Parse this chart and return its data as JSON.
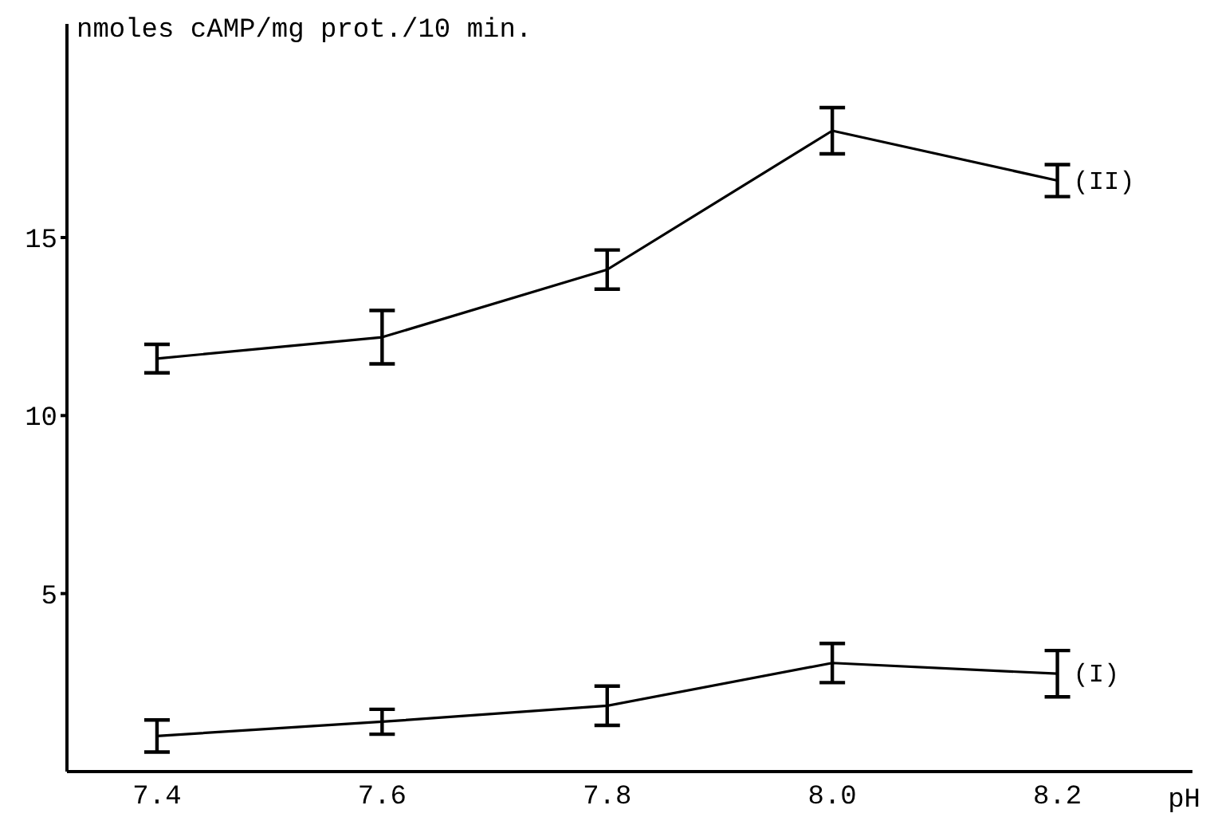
{
  "chart_data": {
    "type": "line",
    "ylabel": "nmoles cAMP/mg prot./10 min.",
    "xlabel": "pH",
    "x": [
      7.4,
      7.6,
      7.8,
      8.0,
      8.2
    ],
    "series": [
      {
        "name": "(II)",
        "color": "#000000",
        "values": [
          11.6,
          12.2,
          14.1,
          18.0,
          16.6
        ],
        "errors": [
          0.4,
          0.75,
          0.55,
          0.65,
          0.45
        ]
      },
      {
        "name": "(I)",
        "color": "#000000",
        "values": [
          1.0,
          1.4,
          1.85,
          3.05,
          2.75
        ],
        "errors": [
          0.45,
          0.35,
          0.55,
          0.55,
          0.65
        ]
      }
    ],
    "xlim": [
      7.32,
      8.32
    ],
    "xticks": [
      {
        "value": 7.4,
        "label": "7.4"
      },
      {
        "value": 7.6,
        "label": "7.6"
      },
      {
        "value": 7.8,
        "label": "7.8"
      },
      {
        "value": 8.0,
        "label": "8.0"
      },
      {
        "value": 8.2,
        "label": "8.2"
      }
    ],
    "ylim": [
      0,
      21
    ],
    "yticks": [
      5,
      10,
      15
    ],
    "grid": false,
    "legend": false,
    "marker": "none",
    "line_style": "solid"
  }
}
